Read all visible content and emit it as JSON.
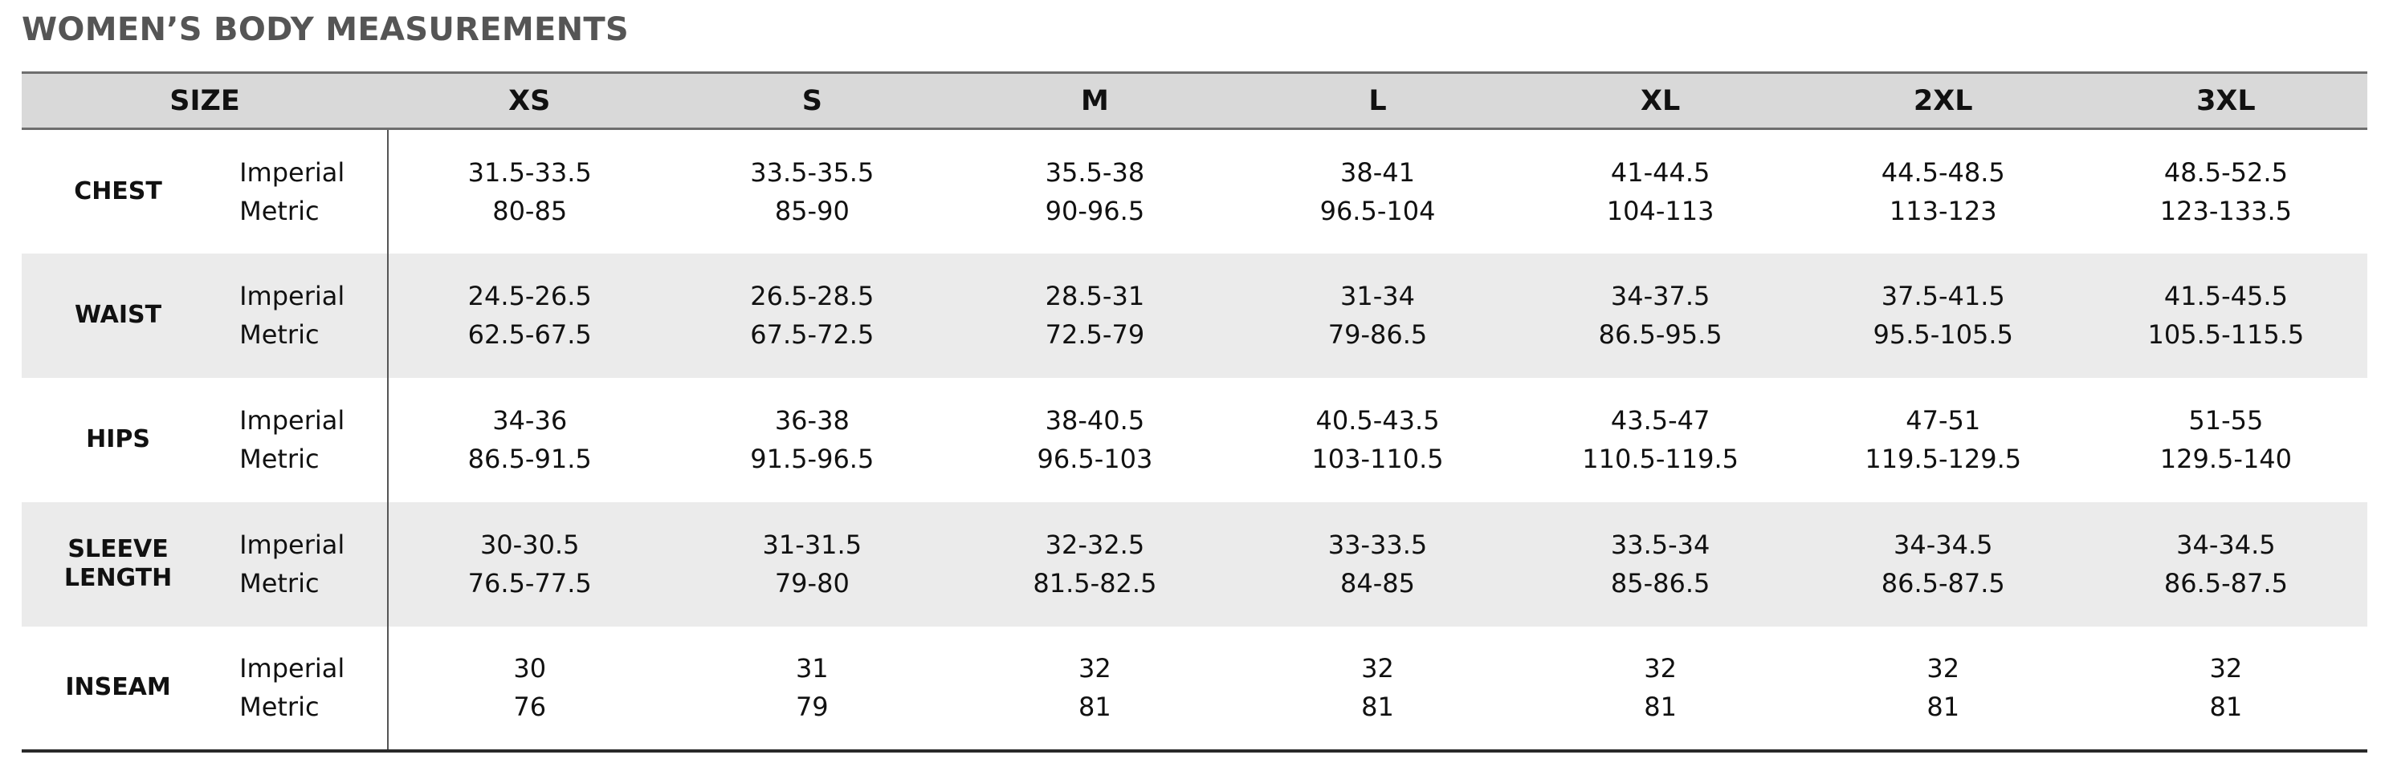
{
  "title": "WOMEN’S BODY MEASUREMENTS",
  "header": {
    "size_label": "SIZE",
    "sizes": [
      "XS",
      "S",
      "M",
      "L",
      "XL",
      "2XL",
      "3XL"
    ]
  },
  "units": {
    "imperial": "Imperial",
    "metric": "Metric"
  },
  "rows": [
    {
      "label_lines": [
        "CHEST"
      ],
      "imperial": [
        "31.5-33.5",
        "33.5-35.5",
        "35.5-38",
        "38-41",
        "41-44.5",
        "44.5-48.5",
        "48.5-52.5"
      ],
      "metric": [
        "80-85",
        "85-90",
        "90-96.5",
        "96.5-104",
        "104-113",
        "113-123",
        "123-133.5"
      ]
    },
    {
      "label_lines": [
        "WAIST"
      ],
      "imperial": [
        "24.5-26.5",
        "26.5-28.5",
        "28.5-31",
        "31-34",
        "34-37.5",
        "37.5-41.5",
        "41.5-45.5"
      ],
      "metric": [
        "62.5-67.5",
        "67.5-72.5",
        "72.5-79",
        "79-86.5",
        "86.5-95.5",
        "95.5-105.5",
        "105.5-115.5"
      ]
    },
    {
      "label_lines": [
        "HIPS"
      ],
      "imperial": [
        "34-36",
        "36-38",
        "38-40.5",
        "40.5-43.5",
        "43.5-47",
        "47-51",
        "51-55"
      ],
      "metric": [
        "86.5-91.5",
        "91.5-96.5",
        "96.5-103",
        "103-110.5",
        "110.5-119.5",
        "119.5-129.5",
        "129.5-140"
      ]
    },
    {
      "label_lines": [
        "SLEEVE",
        "LENGTH"
      ],
      "imperial": [
        "30-30.5",
        "31-31.5",
        "32-32.5",
        "33-33.5",
        "33.5-34",
        "34-34.5",
        "34-34.5"
      ],
      "metric": [
        "76.5-77.5",
        "79-80",
        "81.5-82.5",
        "84-85",
        "85-86.5",
        "86.5-87.5",
        "86.5-87.5"
      ]
    },
    {
      "label_lines": [
        "INSEAM"
      ],
      "imperial": [
        "30",
        "31",
        "32",
        "32",
        "32",
        "32",
        "32"
      ],
      "metric": [
        "76",
        "79",
        "81",
        "81",
        "81",
        "81",
        "81"
      ]
    }
  ],
  "colors": {
    "header_bg": "#d9d9d9",
    "shaded_row_bg": "#ebebeb",
    "title_color": "#555555"
  }
}
